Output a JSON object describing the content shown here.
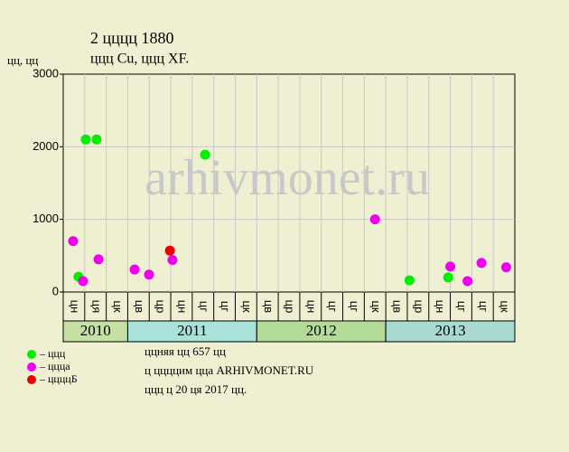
{
  "chart_data": {
    "type": "scatter",
    "title": "2 цццц 1880",
    "subtitle": "ццц Cu, ццц XF.",
    "y_label": "цц, цц",
    "watermark": "arhivmonet.ru",
    "groups": [
      {
        "label": "2010",
        "color": "#c6e0a4",
        "categories": [
          "цн",
          "ця",
          "цк"
        ]
      },
      {
        "label": "2011",
        "color": "#a8e2da",
        "categories": [
          "цв",
          "цр",
          "цн",
          "цг",
          "цг",
          "цк"
        ]
      },
      {
        "label": "2012",
        "color": "#b2dc98",
        "categories": [
          "цв",
          "цр",
          "цн",
          "цг",
          "цг",
          "цк"
        ]
      },
      {
        "label": "2013",
        "color": "#a8dad2",
        "categories": [
          "цв",
          "цр",
          "цн",
          "цг",
          "цг",
          "цк"
        ]
      }
    ],
    "xlim": [
      0,
      21
    ],
    "ylim": [
      0,
      3000
    ],
    "yticks": [
      0,
      1000,
      2000,
      3000
    ],
    "grid": true,
    "series": [
      {
        "name": "– ццц",
        "color": "#00ee00",
        "x": [
          0.71,
          1.05,
          1.55,
          6.6,
          16.1,
          17.9
        ],
        "values": [
          210,
          2100,
          2100,
          1890,
          160,
          200
        ]
      },
      {
        "name": "– цццa",
        "color": "#ee00ee",
        "x": [
          0.46,
          0.92,
          1.64,
          3.32,
          3.99,
          5.08,
          14.5,
          18.0,
          18.8,
          19.45,
          20.6
        ],
        "values": [
          700,
          150,
          450,
          310,
          240,
          440,
          1000,
          350,
          150,
          400,
          340
        ]
      },
      {
        "name": "– ццццБ",
        "color": "#ee0000",
        "x": [
          4.96
        ],
        "values": [
          570
        ]
      }
    ],
    "notes": [
      "ццняя цц 657 цц",
      "ц ццццим цца ARHIVMONET.RU",
      "ццц ц 20 ця 2017 цц."
    ]
  }
}
